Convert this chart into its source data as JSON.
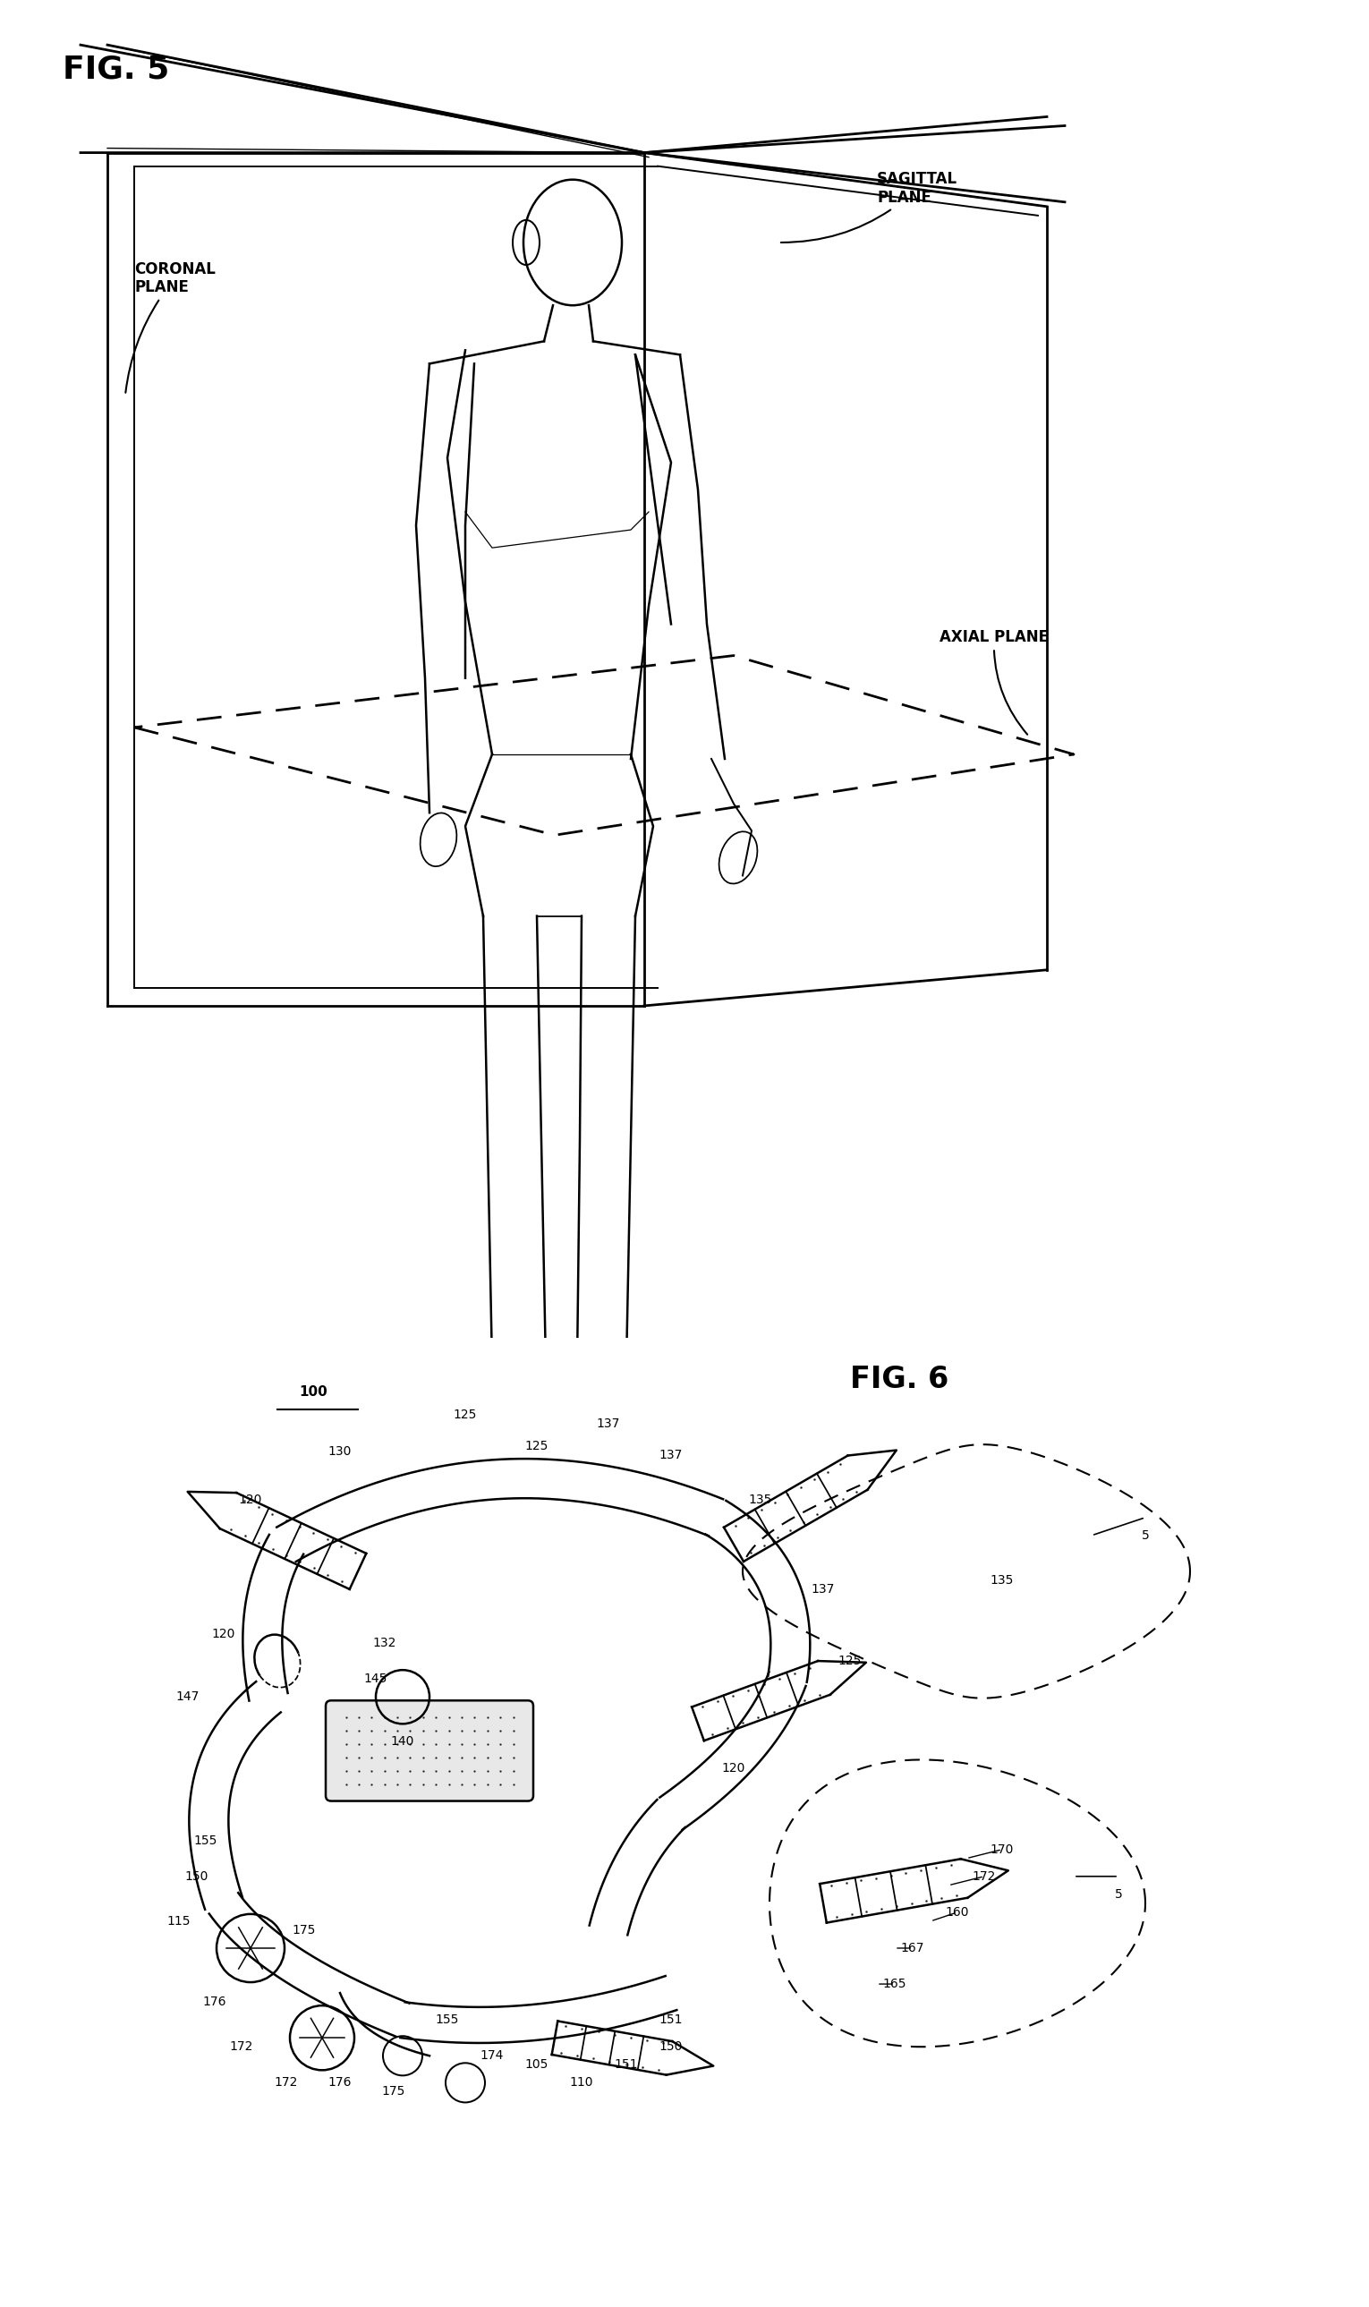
{
  "bg_color": "#ffffff",
  "fig_width": 15.3,
  "fig_height": 25.78,
  "fig5_label": "FIG. 5",
  "fig6_label": "FIG. 6",
  "coronal_plane_label": "CORONAL\nPLANE",
  "sagittal_plane_label": "SAGITTAL\nPLANE",
  "axial_plane_label": "AXIAL PLANE",
  "lw_main": 2.0,
  "lw_body": 1.8,
  "lw_thin": 1.2
}
